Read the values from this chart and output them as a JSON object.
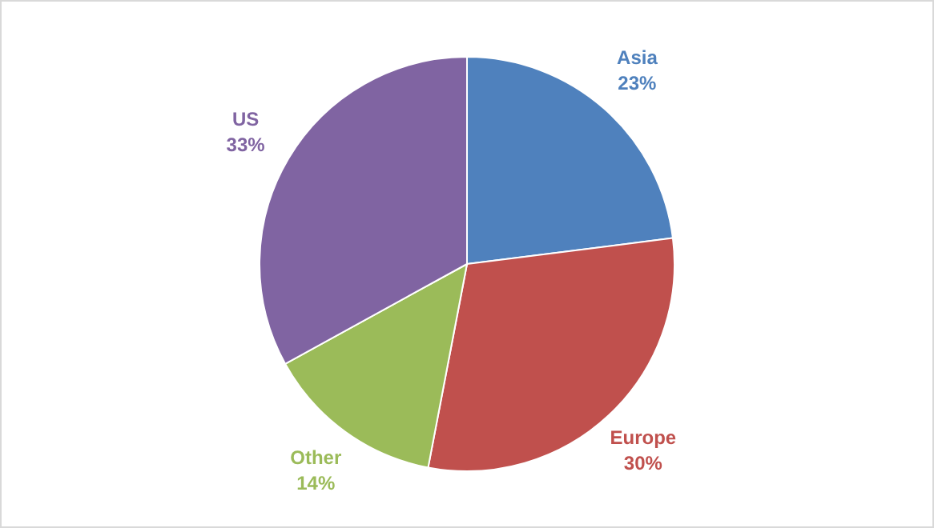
{
  "chart_data": {
    "type": "pie",
    "categories": [
      "Asia",
      "Europe",
      "Other",
      "US"
    ],
    "values": [
      23,
      30,
      14,
      33
    ],
    "colors": [
      "#4f81bd",
      "#c0504d",
      "#9bbb59",
      "#8064a2"
    ],
    "value_labels": [
      "23%",
      "30%",
      "14%",
      "33%"
    ],
    "legend": false
  }
}
